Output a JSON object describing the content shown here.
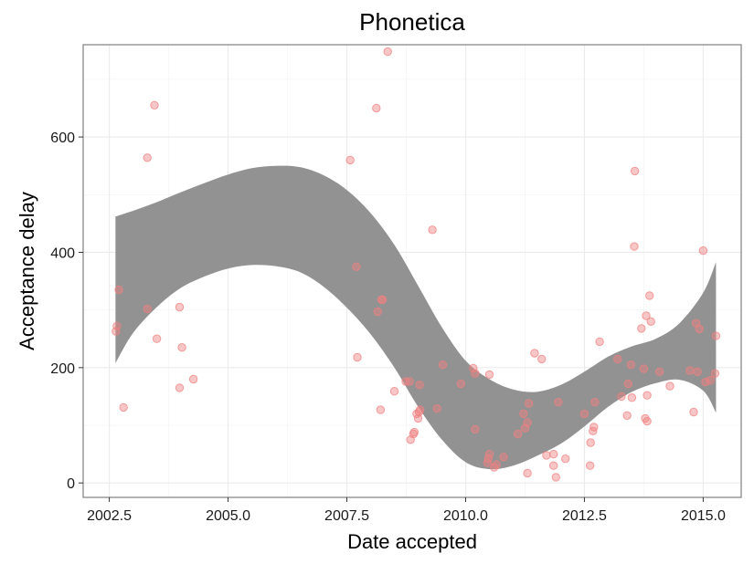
{
  "chart_data": {
    "type": "scatter",
    "title": "Phonetica",
    "xlabel": "Date accepted",
    "ylabel": "Acceptance delay",
    "xlim": [
      2001.95,
      2015.8
    ],
    "ylim": [
      -25,
      760
    ],
    "xticks": [
      2002.5,
      2005.0,
      2007.5,
      2010.0,
      2012.5,
      2015.0
    ],
    "xtick_labels": [
      "2002.5",
      "2005.0",
      "2007.5",
      "2010.0",
      "2012.5",
      "2015.0"
    ],
    "yticks": [
      0,
      200,
      400,
      600
    ],
    "ytick_labels": [
      "0",
      "200",
      "400",
      "600"
    ],
    "grid": true,
    "point_color": "#f08080",
    "band_color": "#8c8c8c",
    "points": [
      [
        2002.64,
        263
      ],
      [
        2002.66,
        272
      ],
      [
        2002.7,
        335
      ],
      [
        2002.8,
        131
      ],
      [
        2003.3,
        302
      ],
      [
        2003.3,
        564
      ],
      [
        2003.45,
        655
      ],
      [
        2003.5,
        250
      ],
      [
        2003.98,
        305
      ],
      [
        2003.98,
        165
      ],
      [
        2004.03,
        235
      ],
      [
        2004.27,
        180
      ],
      [
        2007.57,
        560
      ],
      [
        2007.7,
        375
      ],
      [
        2007.72,
        218
      ],
      [
        2008.12,
        650
      ],
      [
        2008.15,
        297
      ],
      [
        2008.23,
        318
      ],
      [
        2008.25,
        318
      ],
      [
        2008.21,
        127
      ],
      [
        2008.36,
        748
      ],
      [
        2008.5,
        159
      ],
      [
        2008.74,
        176
      ],
      [
        2008.82,
        176
      ],
      [
        2008.84,
        75
      ],
      [
        2008.9,
        85
      ],
      [
        2008.92,
        88
      ],
      [
        2008.97,
        120
      ],
      [
        2009.0,
        112
      ],
      [
        2009.02,
        123
      ],
      [
        2009.04,
        127
      ],
      [
        2009.03,
        170
      ],
      [
        2009.3,
        439
      ],
      [
        2009.4,
        129
      ],
      [
        2009.52,
        205
      ],
      [
        2009.9,
        172
      ],
      [
        2010.16,
        199
      ],
      [
        2010.2,
        190
      ],
      [
        2010.2,
        93
      ],
      [
        2010.46,
        35
      ],
      [
        2010.48,
        42
      ],
      [
        2010.5,
        50
      ],
      [
        2010.5,
        188
      ],
      [
        2010.6,
        27
      ],
      [
        2010.65,
        32
      ],
      [
        2010.8,
        45
      ],
      [
        2011.1,
        85
      ],
      [
        2011.22,
        120
      ],
      [
        2011.25,
        95
      ],
      [
        2011.3,
        105
      ],
      [
        2011.3,
        17
      ],
      [
        2011.33,
        138
      ],
      [
        2011.45,
        225
      ],
      [
        2011.6,
        215
      ],
      [
        2011.7,
        48
      ],
      [
        2011.85,
        50
      ],
      [
        2011.85,
        30
      ],
      [
        2011.9,
        10
      ],
      [
        2011.95,
        140
      ],
      [
        2012.1,
        42
      ],
      [
        2012.5,
        120
      ],
      [
        2012.62,
        30
      ],
      [
        2012.63,
        70
      ],
      [
        2012.68,
        90
      ],
      [
        2012.7,
        97
      ],
      [
        2012.72,
        140
      ],
      [
        2012.82,
        245
      ],
      [
        2013.2,
        215
      ],
      [
        2013.28,
        150
      ],
      [
        2013.4,
        117
      ],
      [
        2013.42,
        172
      ],
      [
        2013.48,
        205
      ],
      [
        2013.5,
        148
      ],
      [
        2013.55,
        410
      ],
      [
        2013.56,
        541
      ],
      [
        2013.7,
        268
      ],
      [
        2013.75,
        198
      ],
      [
        2013.8,
        290
      ],
      [
        2013.78,
        112
      ],
      [
        2013.82,
        107
      ],
      [
        2013.82,
        152
      ],
      [
        2013.87,
        325
      ],
      [
        2013.9,
        280
      ],
      [
        2014.08,
        193
      ],
      [
        2014.3,
        168
      ],
      [
        2014.72,
        195
      ],
      [
        2014.8,
        123
      ],
      [
        2014.85,
        277
      ],
      [
        2014.88,
        193
      ],
      [
        2014.92,
        267
      ],
      [
        2015.0,
        403
      ],
      [
        2015.05,
        175
      ],
      [
        2015.15,
        178
      ],
      [
        2015.25,
        190
      ],
      [
        2015.27,
        255
      ]
    ],
    "smooth_band": {
      "x": [
        2002.63,
        2003.0,
        2003.5,
        2004.0,
        2004.5,
        2005.0,
        2005.5,
        2006.0,
        2006.5,
        2007.0,
        2007.5,
        2008.0,
        2008.5,
        2009.0,
        2009.5,
        2010.0,
        2010.5,
        2011.0,
        2011.5,
        2012.0,
        2012.5,
        2013.0,
        2013.5,
        2014.0,
        2014.5,
        2015.0,
        2015.27
      ],
      "upper": [
        462,
        472,
        487,
        504,
        520,
        535,
        546,
        550,
        548,
        534,
        508,
        468,
        413,
        342,
        270,
        212,
        180,
        162,
        158,
        170,
        193,
        219,
        237,
        250,
        277,
        330,
        383
      ],
      "lower": [
        208,
        260,
        305,
        338,
        358,
        372,
        378,
        376,
        366,
        341,
        304,
        258,
        200,
        132,
        75,
        36,
        24,
        30,
        47,
        68,
        98,
        132,
        158,
        173,
        179,
        160,
        122
      ]
    }
  }
}
